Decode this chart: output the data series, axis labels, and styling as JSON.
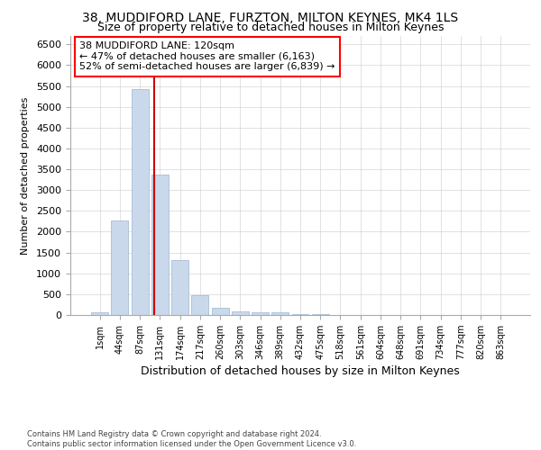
{
  "title": "38, MUDDIFORD LANE, FURZTON, MILTON KEYNES, MK4 1LS",
  "subtitle": "Size of property relative to detached houses in Milton Keynes",
  "xlabel": "Distribution of detached houses by size in Milton Keynes",
  "ylabel": "Number of detached properties",
  "footer_line1": "Contains HM Land Registry data © Crown copyright and database right 2024.",
  "footer_line2": "Contains public sector information licensed under the Open Government Licence v3.0.",
  "bar_values": [
    75,
    2280,
    5430,
    3380,
    1320,
    480,
    165,
    85,
    55,
    55,
    30,
    20,
    10,
    5,
    5,
    5,
    2,
    2,
    1,
    1,
    0
  ],
  "tick_labels": [
    "1sqm",
    "44sqm",
    "87sqm",
    "131sqm",
    "174sqm",
    "217sqm",
    "260sqm",
    "303sqm",
    "346sqm",
    "389sqm",
    "432sqm",
    "475sqm",
    "518sqm",
    "561sqm",
    "604sqm",
    "648sqm",
    "691sqm",
    "734sqm",
    "777sqm",
    "820sqm",
    "863sqm"
  ],
  "bar_color": "#c9d9eb",
  "bar_edge_color": "#9ab5cf",
  "grid_color": "#cccccc",
  "vline_x": 2.72,
  "vline_color": "#cc0000",
  "annotation_text": "38 MUDDIFORD LANE: 120sqm\n← 47% of detached houses are smaller (6,163)\n52% of semi-detached houses are larger (6,839) →",
  "ylim": [
    0,
    6700
  ],
  "yticks": [
    0,
    500,
    1000,
    1500,
    2000,
    2500,
    3000,
    3500,
    4000,
    4500,
    5000,
    5500,
    6000,
    6500
  ],
  "bg_color": "#ffffff",
  "title_fontsize": 10,
  "subtitle_fontsize": 9
}
